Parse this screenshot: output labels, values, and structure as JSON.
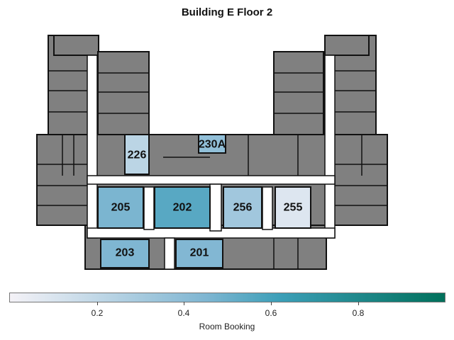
{
  "title": "Building E Floor 2",
  "colors": {
    "unbooked": "#808080",
    "outline": "#111111",
    "corridor": "#ffffff",
    "scale_low": "#f4f2f7",
    "scale_mid": "#3c9fb8",
    "scale_high": "#00705b"
  },
  "rooms": [
    {
      "name": "226",
      "booking": 0.22
    },
    {
      "name": "230A",
      "booking": 0.38
    },
    {
      "name": "205",
      "booking": 0.46
    },
    {
      "name": "202",
      "booking": 0.55
    },
    {
      "name": "256",
      "booking": 0.32
    },
    {
      "name": "255",
      "booking": 0.09
    },
    {
      "name": "203",
      "booking": 0.45
    },
    {
      "name": "201",
      "booking": 0.44
    }
  ],
  "legend": {
    "title": "Room Booking",
    "ticks": [
      "0.2",
      "0.4",
      "0.6",
      "0.8"
    ],
    "tick_values": [
      0.2,
      0.4,
      0.6,
      0.8
    ],
    "range": [
      0,
      1
    ]
  }
}
